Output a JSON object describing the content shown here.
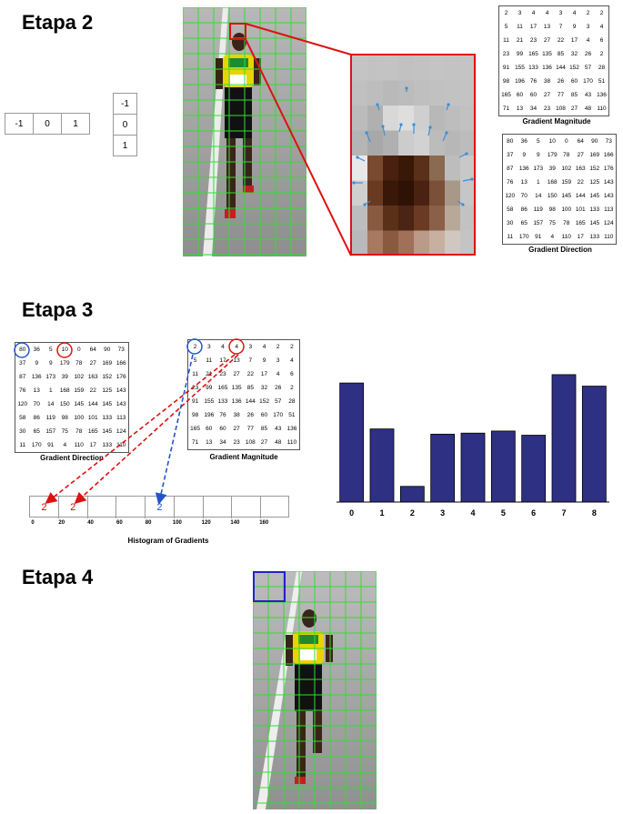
{
  "stage2": {
    "title": "Etapa 2",
    "kernel_h": [
      "-1",
      "0",
      "1"
    ],
    "kernel_v": [
      "-1",
      "0",
      "1"
    ],
    "magnitude": {
      "caption": "Gradient Magnitude",
      "rows": [
        [
          "2",
          "3",
          "4",
          "4",
          "3",
          "4",
          "2",
          "2"
        ],
        [
          "5",
          "11",
          "17",
          "13",
          "7",
          "9",
          "3",
          "4"
        ],
        [
          "11",
          "21",
          "23",
          "27",
          "22",
          "17",
          "4",
          "6"
        ],
        [
          "23",
          "99",
          "165",
          "135",
          "85",
          "32",
          "26",
          "2"
        ],
        [
          "91",
          "155",
          "133",
          "136",
          "144",
          "152",
          "57",
          "28"
        ],
        [
          "98",
          "196",
          "76",
          "38",
          "26",
          "60",
          "170",
          "51"
        ],
        [
          "165",
          "60",
          "60",
          "27",
          "77",
          "85",
          "43",
          "136"
        ],
        [
          "71",
          "13",
          "34",
          "23",
          "108",
          "27",
          "48",
          "110"
        ]
      ]
    },
    "direction": {
      "caption": "Gradient Direction",
      "rows": [
        [
          "80",
          "36",
          "5",
          "10",
          "0",
          "64",
          "90",
          "73"
        ],
        [
          "37",
          "9",
          "9",
          "179",
          "78",
          "27",
          "169",
          "166"
        ],
        [
          "87",
          "136",
          "173",
          "39",
          "102",
          "163",
          "152",
          "176"
        ],
        [
          "76",
          "13",
          "1",
          "168",
          "159",
          "22",
          "125",
          "143"
        ],
        [
          "120",
          "70",
          "14",
          "150",
          "145",
          "144",
          "145",
          "143"
        ],
        [
          "58",
          "86",
          "119",
          "98",
          "100",
          "101",
          "133",
          "113"
        ],
        [
          "30",
          "65",
          "157",
          "75",
          "78",
          "165",
          "145",
          "124"
        ],
        [
          "11",
          "170",
          "91",
          "4",
          "110",
          "17",
          "133",
          "110"
        ]
      ]
    }
  },
  "stage3": {
    "title": "Etapa 3",
    "direction_caption": "Gradient Direction",
    "magnitude_caption": "Gradient Magnitude",
    "histogram": {
      "caption": "Histogram of Gradients",
      "bins": [
        "0",
        "20",
        "40",
        "60",
        "80",
        "100",
        "120",
        "140",
        "160"
      ],
      "cell_values": [
        "2",
        "2",
        "",
        "",
        "2",
        "",
        "",
        "",
        ""
      ]
    }
  },
  "stage4": {
    "title": "Etapa 4"
  },
  "chart_data": {
    "type": "bar",
    "categories": [
      "0",
      "1",
      "2",
      "3",
      "4",
      "5",
      "6",
      "7",
      "8"
    ],
    "values": [
      114,
      70,
      15,
      65,
      66,
      68,
      64,
      122,
      111
    ],
    "ylim": [
      0,
      135
    ],
    "bar_color": "#2e3083",
    "xlabel": "",
    "ylabel": ""
  },
  "colors": {
    "grid_green": "#33dd33",
    "highlight_red": "#dd1111",
    "highlight_blue": "#2255cc"
  }
}
